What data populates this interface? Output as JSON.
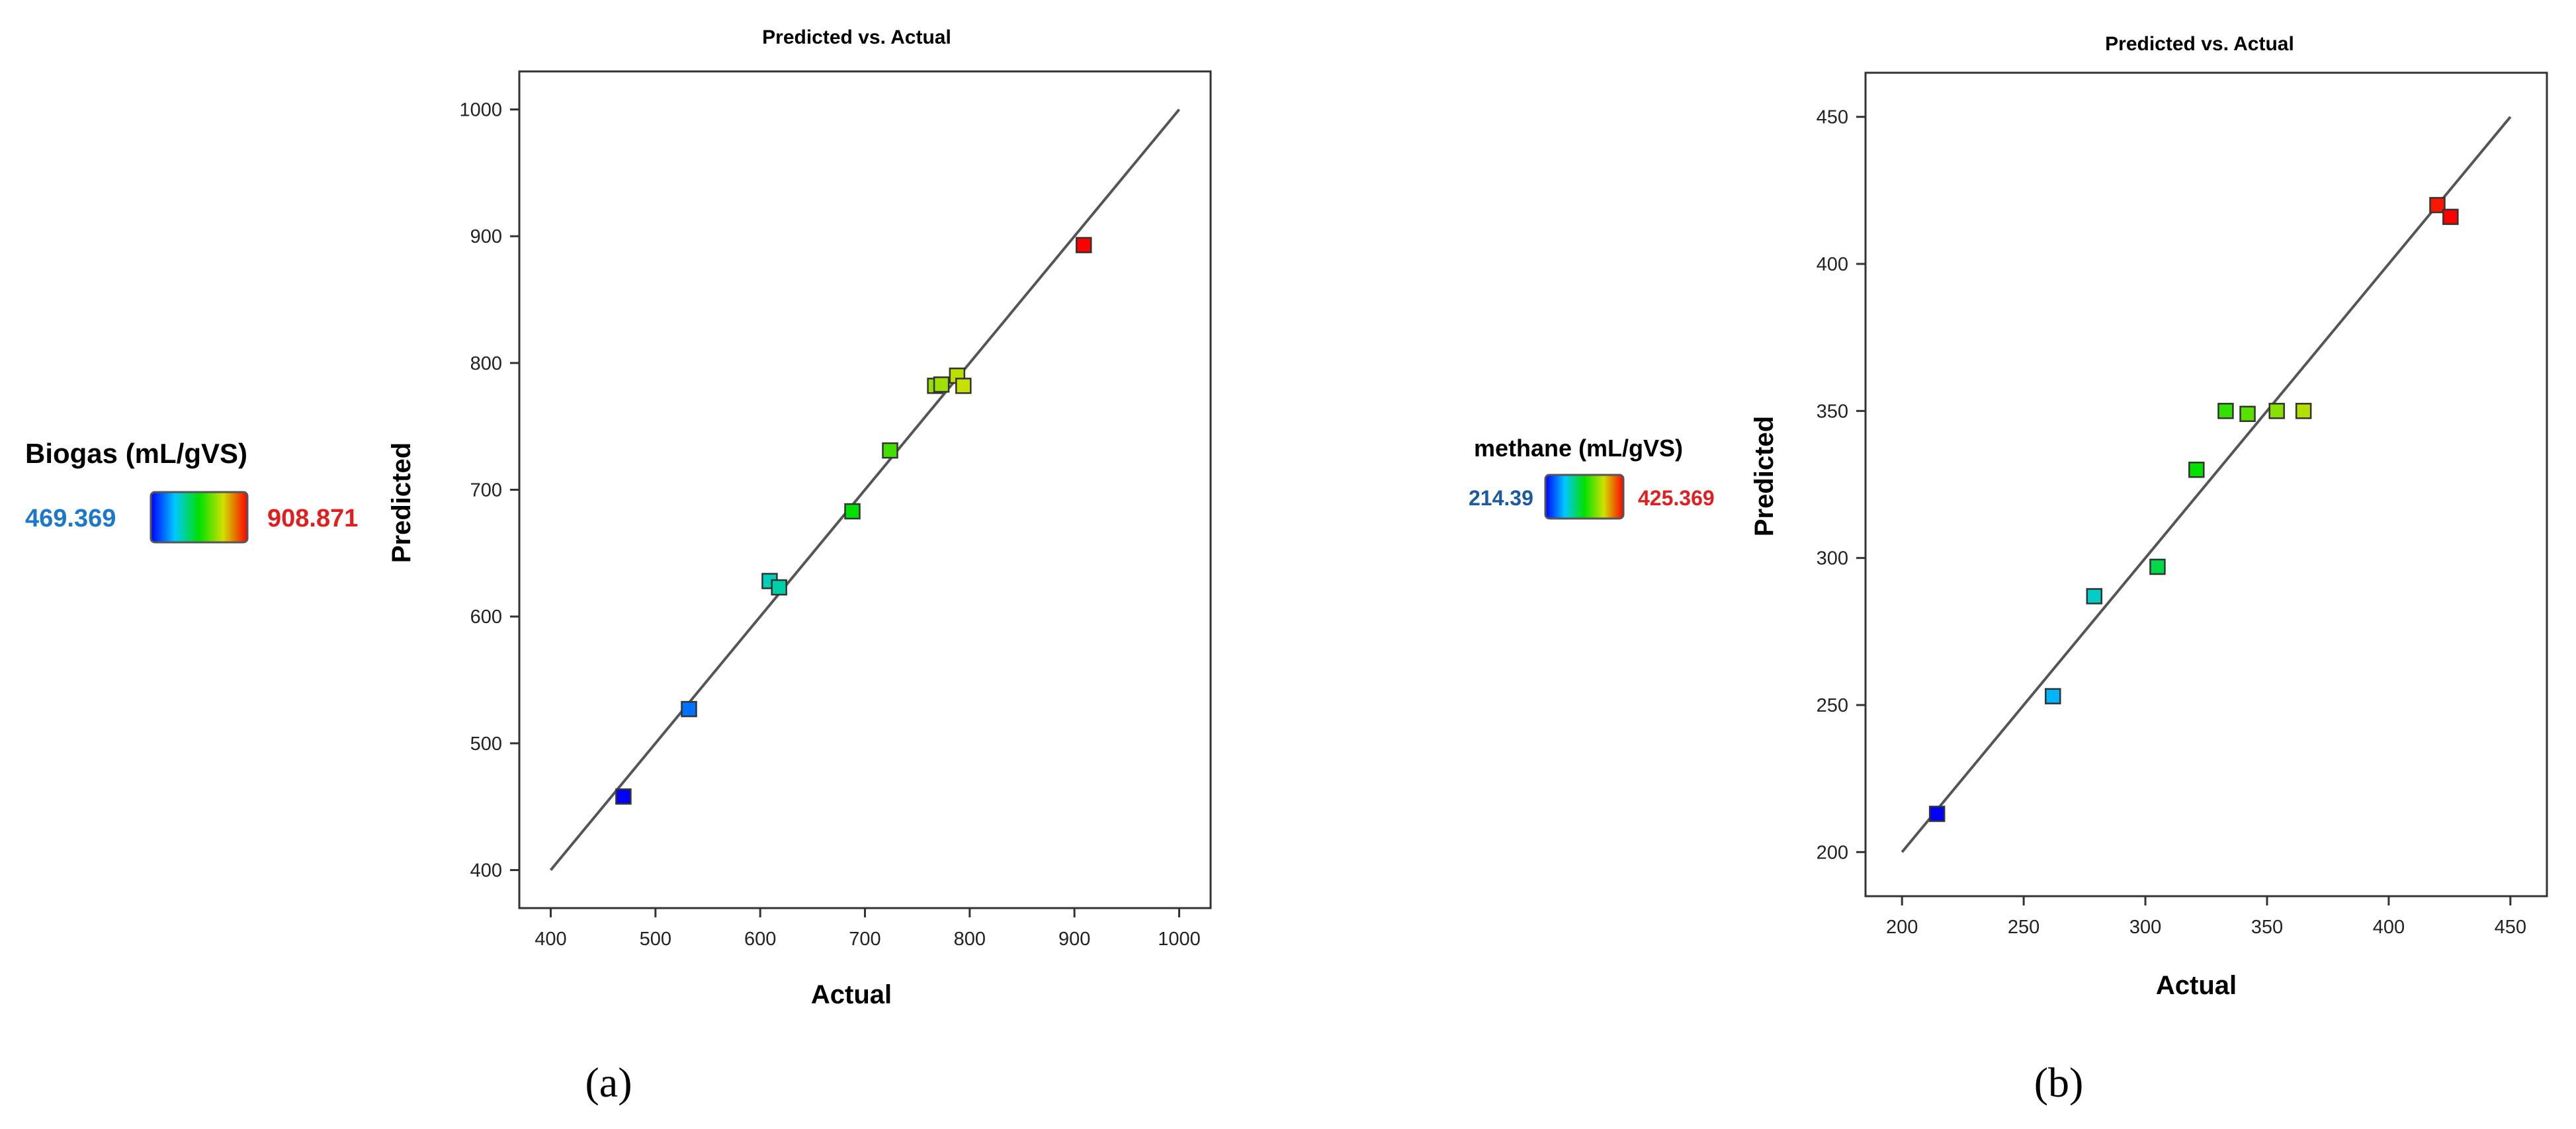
{
  "chart_data": [
    {
      "type": "scatter",
      "panel_label": "(a)",
      "title": "Predicted vs. Actual",
      "xlabel": "Actual",
      "ylabel": "Predicted",
      "xlim": [
        370,
        1030
      ],
      "ylim": [
        370,
        1030
      ],
      "xticks": [
        "400",
        "500",
        "600",
        "700",
        "800",
        "900",
        "1000"
      ],
      "yticks": [
        "400",
        "500",
        "600",
        "700",
        "800",
        "900",
        "1000"
      ],
      "reference_line": {
        "x": [
          400,
          1000
        ],
        "y": [
          400,
          1000
        ]
      },
      "colorbar": {
        "title": "Biogas (mL/gVS)",
        "min": "469.369",
        "max": "908.871",
        "min_value": 469.369,
        "max_value": 908.871
      },
      "points": [
        {
          "x": 469.4,
          "y": 458
        },
        {
          "x": 532,
          "y": 527
        },
        {
          "x": 609,
          "y": 628
        },
        {
          "x": 618,
          "y": 623
        },
        {
          "x": 688,
          "y": 683
        },
        {
          "x": 724,
          "y": 731
        },
        {
          "x": 767,
          "y": 782
        },
        {
          "x": 773,
          "y": 783
        },
        {
          "x": 788,
          "y": 790
        },
        {
          "x": 794,
          "y": 782
        },
        {
          "x": 908.9,
          "y": 893
        }
      ],
      "grid": false,
      "legend": "colorbar-left"
    },
    {
      "type": "scatter",
      "panel_label": "(b)",
      "title": "Predicted vs. Actual",
      "xlabel": "Actual",
      "ylabel": "Predicted",
      "xlim": [
        185,
        465
      ],
      "ylim": [
        185,
        465
      ],
      "xticks": [
        "200",
        "250",
        "300",
        "350",
        "400",
        "450"
      ],
      "yticks": [
        "200",
        "250",
        "300",
        "350",
        "400",
        "450"
      ],
      "reference_line": {
        "x": [
          200,
          450
        ],
        "y": [
          200,
          450
        ]
      },
      "colorbar": {
        "title": "methane (mL/gVS)",
        "min": "214.39",
        "max": "425.369",
        "min_value": 214.39,
        "max_value": 425.369
      },
      "points": [
        {
          "x": 214.4,
          "y": 213
        },
        {
          "x": 262,
          "y": 253
        },
        {
          "x": 279,
          "y": 287
        },
        {
          "x": 305,
          "y": 297
        },
        {
          "x": 321,
          "y": 330
        },
        {
          "x": 333,
          "y": 350
        },
        {
          "x": 342,
          "y": 349
        },
        {
          "x": 354,
          "y": 350
        },
        {
          "x": 365,
          "y": 350
        },
        {
          "x": 420,
          "y": 420
        },
        {
          "x": 425.4,
          "y": 416
        }
      ],
      "grid": false,
      "legend": "colorbar-left"
    }
  ]
}
